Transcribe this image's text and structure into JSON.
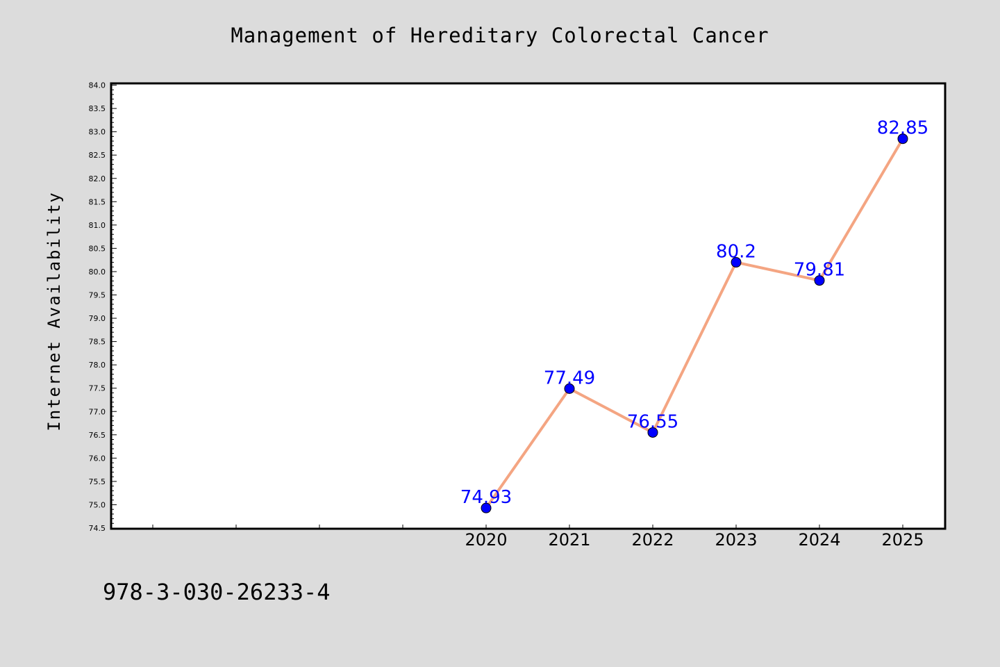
{
  "chart_data": {
    "type": "line",
    "title": "Management of Hereditary Colorectal Cancer",
    "xlabel": "",
    "ylabel": "Internet Availability",
    "categories": [
      "2020",
      "2021",
      "2022",
      "2023",
      "2024",
      "2025"
    ],
    "series": [
      {
        "values": [
          74.93,
          77.49,
          76.55,
          80.2,
          79.81,
          82.85
        ]
      }
    ],
    "data_labels": [
      "74.93",
      "77.49",
      "76.55",
      "80.2",
      "79.81",
      "82.85"
    ],
    "ylim": [
      74.5,
      84.0
    ],
    "yticks": [
      "74.5",
      "75.0",
      "75.5",
      "76.0",
      "76.5",
      "77.0",
      "77.5",
      "78.0",
      "78.5",
      "79.0",
      "79.5",
      "80.0",
      "80.5",
      "81.0",
      "81.5",
      "82.0",
      "82.5",
      "83.0",
      "83.5",
      "84.0"
    ],
    "grid": false,
    "legend": "none",
    "colors": {
      "line": "#f4a582",
      "marker": "#0000ff",
      "label": "#0000ff",
      "background": "#dcdcdc",
      "plot_bg": "#ffffff"
    }
  },
  "footer": {
    "isbn": "978-3-030-26233-4"
  }
}
